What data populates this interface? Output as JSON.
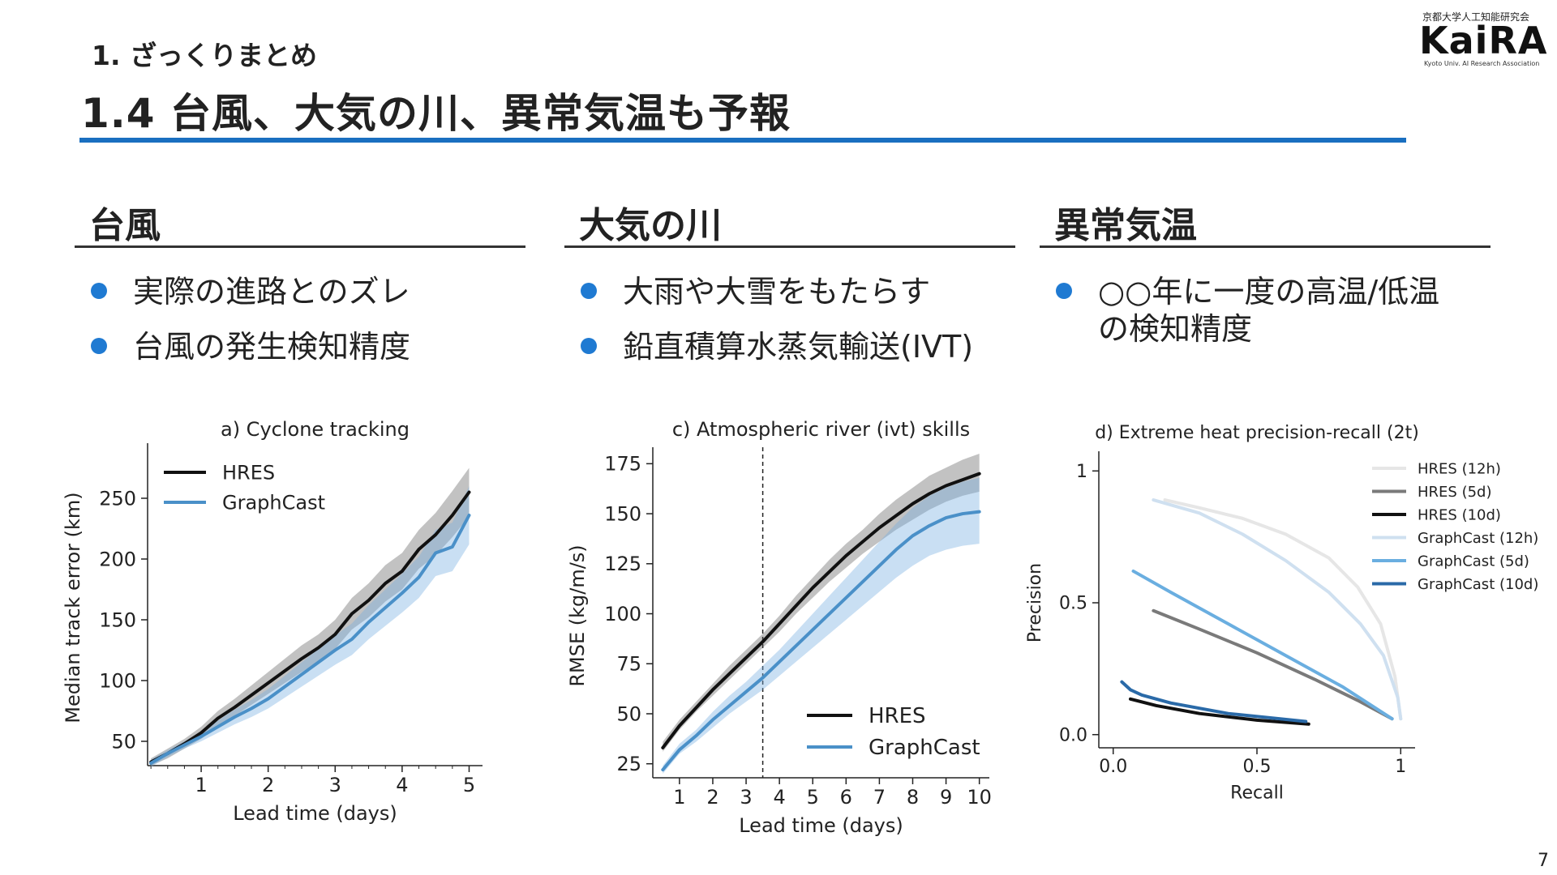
{
  "header": {
    "section": "1. ざっくりまとめ",
    "title": "1.4 台風、大気の川、異常気温も予報"
  },
  "logo": {
    "org_jp": "京都大学人工知能研究会",
    "name": "KaiRA",
    "org_en": "Kyoto Univ. AI Research Association"
  },
  "columns": [
    {
      "heading": "台風",
      "bullets": [
        "実際の進路とのズレ",
        "台風の発生検知精度"
      ]
    },
    {
      "heading": "大気の川",
      "bullets": [
        "大雨や大雪をもたらす",
        "鉛直積算水蒸気輸送(IVT)"
      ]
    },
    {
      "heading": "異常気温",
      "bullets": [
        "○○年に一度の高温/低温",
        "の検知精度"
      ]
    }
  ],
  "colors": {
    "accent": "#1a6fc0",
    "bullet": "#1f7ad2",
    "graphcast": "#4a90c8",
    "hres": "#111111"
  },
  "page_number": "7",
  "chart_data": [
    {
      "type": "line",
      "title": "a) Cyclone tracking",
      "xlabel": "Lead time (days)",
      "ylabel": "Median track error (km)",
      "xlim": [
        0.2,
        5.2
      ],
      "ylim": [
        30,
        290
      ],
      "xticks": [
        1,
        2,
        3,
        4,
        5
      ],
      "yticks": [
        50,
        100,
        150,
        200,
        250
      ],
      "legend": "top-left",
      "x": [
        0.25,
        0.5,
        0.75,
        1.0,
        1.25,
        1.5,
        1.75,
        2.0,
        2.25,
        2.5,
        2.75,
        3.0,
        3.25,
        3.5,
        3.75,
        4.0,
        4.25,
        4.5,
        4.75,
        5.0
      ],
      "series": [
        {
          "name": "HRES",
          "color": "#111111",
          "values": [
            33,
            40,
            48,
            57,
            69,
            78,
            88,
            98,
            108,
            118,
            127,
            138,
            155,
            166,
            180,
            190,
            208,
            220,
            236,
            255
          ],
          "band": [
            [
              30,
              36
            ],
            [
              36,
              44
            ],
            [
              44,
              52
            ],
            [
              52,
              62
            ],
            [
              63,
              75
            ],
            [
              71,
              85
            ],
            [
              80,
              96
            ],
            [
              89,
              107
            ],
            [
              98,
              118
            ],
            [
              107,
              129
            ],
            [
              116,
              138
            ],
            [
              126,
              150
            ],
            [
              142,
              168
            ],
            [
              152,
              180
            ],
            [
              165,
              195
            ],
            [
              175,
              205
            ],
            [
              192,
              224
            ],
            [
              203,
              238
            ],
            [
              218,
              256
            ],
            [
              235,
              275
            ]
          ]
        },
        {
          "name": "GraphCast",
          "color": "#4a90c8",
          "values": [
            32,
            40,
            47,
            54,
            62,
            70,
            77,
            85,
            95,
            105,
            115,
            125,
            134,
            148,
            160,
            172,
            185,
            205,
            210,
            236
          ],
          "band": [
            [
              29,
              35
            ],
            [
              37,
              43
            ],
            [
              44,
              50
            ],
            [
              50,
              58
            ],
            [
              57,
              67
            ],
            [
              64,
              76
            ],
            [
              70,
              84
            ],
            [
              77,
              93
            ],
            [
              86,
              104
            ],
            [
              95,
              115
            ],
            [
              104,
              126
            ],
            [
              113,
              137
            ],
            [
              121,
              147
            ],
            [
              134,
              162
            ],
            [
              145,
              175
            ],
            [
              156,
              188
            ],
            [
              168,
              202
            ],
            [
              186,
              224
            ],
            [
              190,
              230
            ],
            [
              212,
              260
            ]
          ]
        }
      ]
    },
    {
      "type": "line",
      "title": "c) Atmospheric river (ivt) skills",
      "xlabel": "Lead time (days)",
      "ylabel": "RMSE (kg/m/s)",
      "xlim": [
        0.2,
        10.3
      ],
      "ylim": [
        18,
        180
      ],
      "xticks": [
        1,
        2,
        3,
        4,
        5,
        6,
        7,
        8,
        9,
        10
      ],
      "yticks": [
        25,
        50,
        75,
        100,
        125,
        150,
        175
      ],
      "vline": 3.5,
      "legend": "bottom-right",
      "x": [
        0.5,
        1,
        1.5,
        2,
        2.5,
        3,
        3.5,
        4,
        4.5,
        5,
        5.5,
        6,
        6.5,
        7,
        7.5,
        8,
        8.5,
        9,
        9.5,
        10
      ],
      "series": [
        {
          "name": "HRES",
          "color": "#111111",
          "values": [
            33,
            44,
            53,
            62,
            70,
            78,
            86,
            95,
            104,
            113,
            121,
            129,
            136,
            143,
            149,
            155,
            160,
            164,
            167,
            170
          ],
          "band": [
            [
              31,
              36
            ],
            [
              42,
              47
            ],
            [
              51,
              56
            ],
            [
              59,
              65
            ],
            [
              67,
              74
            ],
            [
              75,
              82
            ],
            [
              83,
              90
            ],
            [
              91,
              99
            ],
            [
              100,
              109
            ],
            [
              108,
              118
            ],
            [
              116,
              127
            ],
            [
              123,
              135
            ],
            [
              130,
              142
            ],
            [
              136,
              150
            ],
            [
              142,
              157
            ],
            [
              147,
              163
            ],
            [
              152,
              169
            ],
            [
              156,
              173
            ],
            [
              159,
              177
            ],
            [
              161,
              180
            ]
          ]
        },
        {
          "name": "GraphCast",
          "color": "#4a90c8",
          "values": [
            22,
            32,
            39,
            47,
            54,
            61,
            68,
            76,
            84,
            92,
            100,
            108,
            116,
            124,
            132,
            139,
            144,
            148,
            150,
            151
          ],
          "band": [
            [
              20,
              24
            ],
            [
              30,
              35
            ],
            [
              36,
              42
            ],
            [
              43,
              51
            ],
            [
              50,
              59
            ],
            [
              56,
              66
            ],
            [
              62,
              74
            ],
            [
              69,
              82
            ],
            [
              76,
              91
            ],
            [
              83,
              100
            ],
            [
              90,
              109
            ],
            [
              97,
              118
            ],
            [
              104,
              127
            ],
            [
              111,
              136
            ],
            [
              118,
              145
            ],
            [
              124,
              153
            ],
            [
              129,
              159
            ],
            [
              132,
              163
            ],
            [
              134,
              166
            ],
            [
              135,
              168
            ]
          ]
        }
      ]
    },
    {
      "type": "line",
      "title": "d) Extreme heat precision-recall (2t)",
      "xlabel": "Recall",
      "ylabel": "Precision",
      "xlim": [
        -0.05,
        1.05
      ],
      "ylim": [
        -0.05,
        1.05
      ],
      "xticks": [
        0.0,
        0.5,
        1.0
      ],
      "yticks": [
        0.0,
        0.5,
        1.0
      ],
      "legend": "top-right",
      "series": [
        {
          "name": "HRES (12h)",
          "color": "#e6e6e6",
          "x": [
            0.18,
            0.3,
            0.45,
            0.6,
            0.75,
            0.85,
            0.93,
            0.98,
            1.0
          ],
          "y": [
            0.89,
            0.86,
            0.82,
            0.76,
            0.67,
            0.56,
            0.42,
            0.22,
            0.06
          ]
        },
        {
          "name": "HRES (5d)",
          "color": "#7a7a7a",
          "x": [
            0.14,
            0.3,
            0.5,
            0.7,
            0.85,
            0.97
          ],
          "y": [
            0.47,
            0.4,
            0.31,
            0.21,
            0.13,
            0.06
          ]
        },
        {
          "name": "HRES (10d)",
          "color": "#111111",
          "x": [
            0.06,
            0.15,
            0.3,
            0.5,
            0.68
          ],
          "y": [
            0.135,
            0.11,
            0.08,
            0.055,
            0.04
          ]
        },
        {
          "name": "GraphCast (12h)",
          "color": "#cfe0f0",
          "x": [
            0.14,
            0.3,
            0.45,
            0.6,
            0.75,
            0.86,
            0.94,
            0.99,
            1.0
          ],
          "y": [
            0.89,
            0.84,
            0.76,
            0.66,
            0.54,
            0.42,
            0.3,
            0.14,
            0.06
          ]
        },
        {
          "name": "GraphCast (5d)",
          "color": "#6aaee0",
          "x": [
            0.07,
            0.2,
            0.4,
            0.6,
            0.8,
            0.97
          ],
          "y": [
            0.62,
            0.54,
            0.42,
            0.3,
            0.18,
            0.06
          ]
        },
        {
          "name": "GraphCast (10d)",
          "color": "#2a6aa8",
          "x": [
            0.03,
            0.06,
            0.1,
            0.2,
            0.4,
            0.67
          ],
          "y": [
            0.2,
            0.17,
            0.15,
            0.12,
            0.08,
            0.05
          ]
        }
      ]
    }
  ]
}
